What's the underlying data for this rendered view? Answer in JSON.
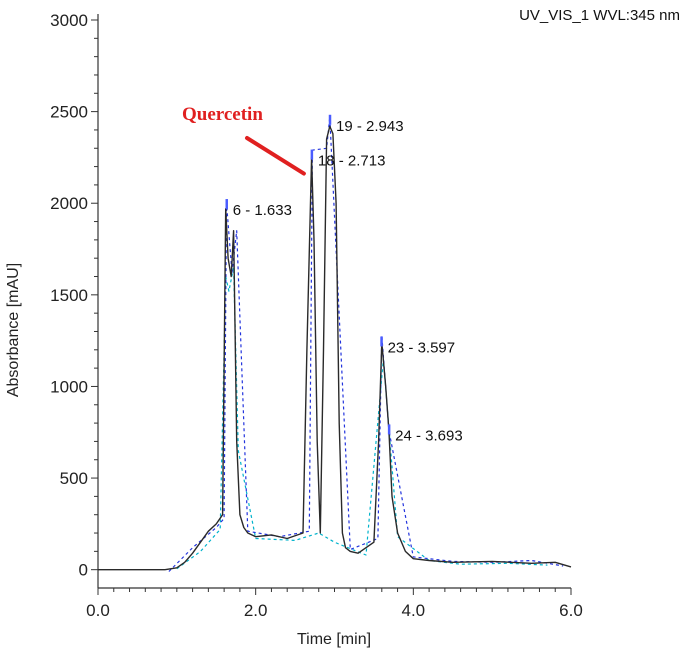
{
  "chart_data": {
    "type": "line",
    "channel_label": "UV_VIS_1 WVL:345 nm",
    "xlabel": "Time [min]",
    "ylabel": "Absorbance [mAU]",
    "xlim": [
      0,
      6
    ],
    "ylim": [
      -100,
      3000
    ],
    "x_ticks": [
      0,
      2,
      4,
      6
    ],
    "x_tick_labels": [
      "0.0",
      "2.0",
      "4.0",
      "6.0"
    ],
    "y_ticks": [
      0,
      500,
      1000,
      1500,
      2000,
      2500,
      3000
    ],
    "y_tick_labels": [
      "0",
      "500",
      "1000",
      "1500",
      "2000",
      "2500",
      "3000"
    ],
    "grid": false,
    "annotation": {
      "text": "Quercetin",
      "target_peak": "18 - 2.713"
    },
    "peaks": [
      {
        "label": "6 - 1.633",
        "x": 1.633,
        "y": 1990
      },
      {
        "label": "18 - 2.713",
        "x": 2.713,
        "y": 2260
      },
      {
        "label": "19 - 2.943",
        "x": 2.943,
        "y": 2450
      },
      {
        "label": "23 - 3.597",
        "x": 3.597,
        "y": 1240
      },
      {
        "label": "24 - 3.693",
        "x": 3.693,
        "y": 760
      }
    ],
    "series": [
      {
        "color": "#2a2a2a",
        "x": [
          0.0,
          0.85,
          1.0,
          1.1,
          1.2,
          1.3,
          1.4,
          1.5,
          1.58,
          1.62,
          1.65,
          1.69,
          1.72,
          1.76,
          1.8,
          1.85,
          1.9,
          2.0,
          2.2,
          2.4,
          2.6,
          2.65,
          2.71,
          2.74,
          2.78,
          2.82,
          2.86,
          2.9,
          2.94,
          2.98,
          3.02,
          3.06,
          3.1,
          3.14,
          3.2,
          3.3,
          3.5,
          3.56,
          3.6,
          3.65,
          3.69,
          3.73,
          3.8,
          3.9,
          4.0,
          4.2,
          4.5,
          5.0,
          5.5,
          5.8,
          6.0
        ],
        "y": [
          0,
          0,
          10,
          40,
          90,
          150,
          210,
          250,
          300,
          1970,
          1700,
          1600,
          1850,
          700,
          300,
          230,
          200,
          180,
          190,
          170,
          200,
          1200,
          2250,
          1800,
          700,
          200,
          1200,
          2350,
          2420,
          2380,
          2000,
          800,
          200,
          120,
          100,
          90,
          150,
          700,
          1240,
          1000,
          760,
          400,
          200,
          100,
          60,
          50,
          40,
          45,
          35,
          40,
          15
        ]
      },
      {
        "color": "#2233dd",
        "x": [
          0.9,
          1.2,
          1.5,
          1.6,
          1.63,
          1.7,
          1.76,
          1.9,
          2.3,
          2.68,
          2.72,
          2.9,
          2.94,
          3.2,
          3.55,
          3.6,
          3.69,
          4.0,
          4.5,
          5.0,
          5.5,
          5.9
        ],
        "y": [
          -10,
          120,
          230,
          280,
          2000,
          1620,
          1850,
          210,
          180,
          210,
          2290,
          2300,
          2470,
          110,
          170,
          1280,
          760,
          70,
          45,
          40,
          50,
          20
        ]
      },
      {
        "color": "#00b3cc",
        "x": [
          1.0,
          1.3,
          1.55,
          1.62,
          1.66,
          1.72,
          1.78,
          2.0,
          2.5,
          2.8,
          3.0,
          3.4,
          3.62,
          3.8,
          4.2,
          4.6,
          5.2,
          5.7
        ],
        "y": [
          5,
          100,
          220,
          1600,
          1520,
          1650,
          650,
          170,
          160,
          200,
          150,
          80,
          1150,
          180,
          50,
          30,
          35,
          25
        ]
      }
    ]
  }
}
